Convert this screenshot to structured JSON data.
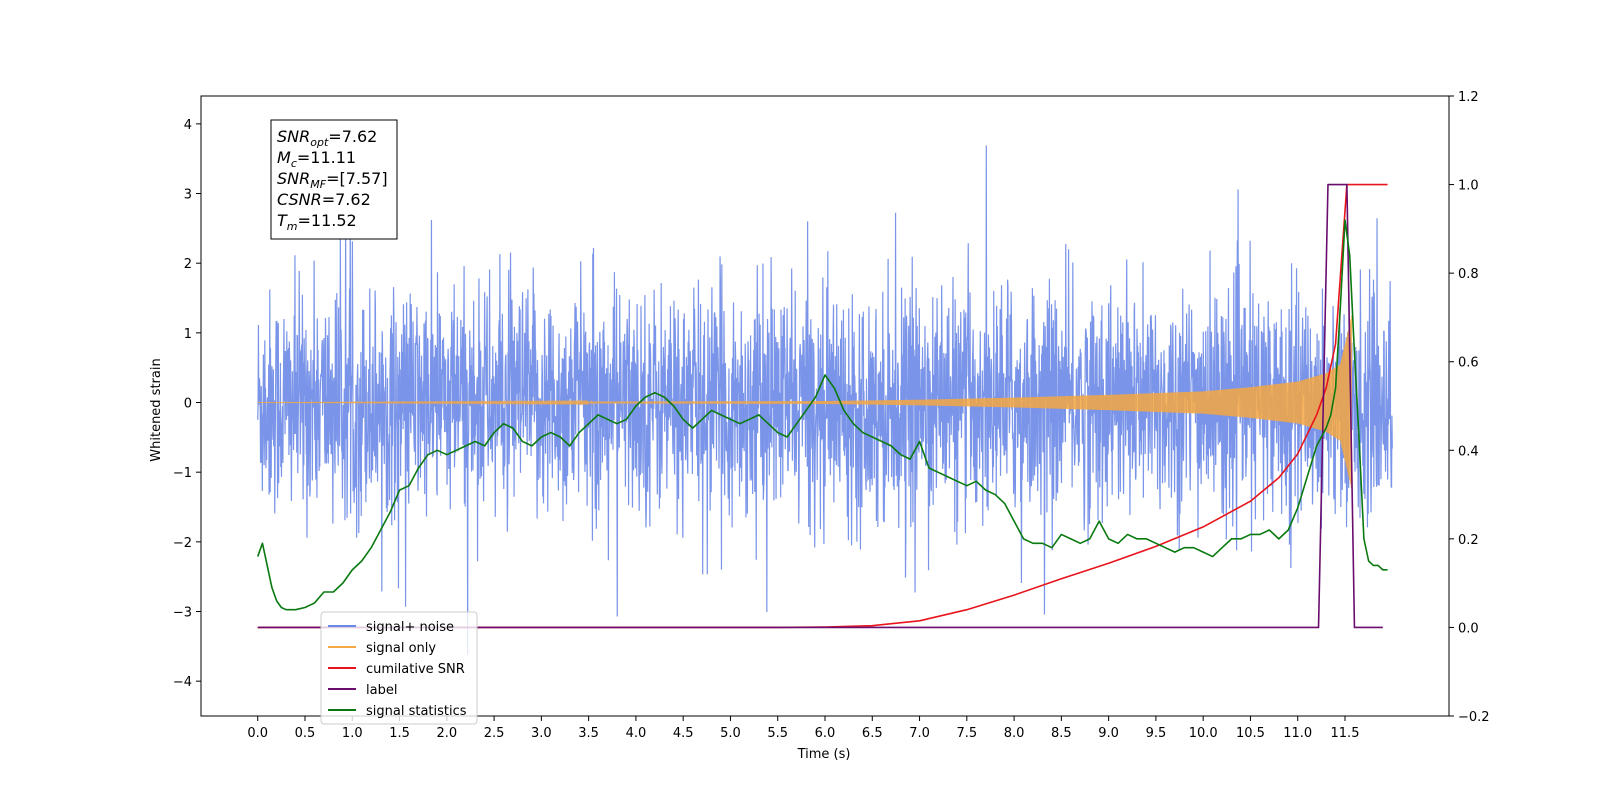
{
  "chart_data": {
    "type": "line",
    "xlabel": "Time (s)",
    "ylabel": "Whitened strain",
    "y2label": "",
    "xlim": [
      -0.6,
      12.6
    ],
    "ylim": [
      -4.5,
      4.4
    ],
    "y2lim": [
      -0.2,
      1.2
    ],
    "xticks": [
      "0.0",
      "0.5",
      "1.0",
      "1.5",
      "2.0",
      "2.5",
      "3.0",
      "3.5",
      "4.0",
      "4.5",
      "5.0",
      "5.5",
      "6.0",
      "6.5",
      "7.0",
      "7.5",
      "8.0",
      "8.5",
      "9.0",
      "9.5",
      "10.0",
      "10.5",
      "11.0",
      "11.5"
    ],
    "yticks": [
      -4,
      -3,
      -2,
      -1,
      0,
      1,
      2,
      3,
      4
    ],
    "y2ticks": [
      "-0.2",
      "0.0",
      "0.2",
      "0.4",
      "0.6",
      "0.8",
      "1.0",
      "1.2"
    ],
    "grid": false,
    "legend_position": "lower-left",
    "annotation": [
      {
        "base": "SNR",
        "sub": "opt",
        "value": "=7.62"
      },
      {
        "base": "M",
        "sub": "c",
        "value": "=11.11"
      },
      {
        "base": "SNR",
        "sub": "MF",
        "value": "=[7.57]"
      },
      {
        "base": "CSNR",
        "sub": "",
        "value": "=7.62"
      },
      {
        "base": "T",
        "sub": "m",
        "value": "=11.52"
      }
    ],
    "series": [
      {
        "name": "signal+ noise",
        "color": "#6a88e6",
        "axis": "left",
        "kind": "noise",
        "x_range": [
          0.0,
          12.0
        ],
        "typical_amplitude": [
          -1.6,
          1.6
        ],
        "peak_range": [
          -4.05,
          4.05
        ]
      },
      {
        "name": "signal only",
        "color": "#f4a742",
        "axis": "left",
        "kind": "chirp",
        "x_range": [
          0.0,
          11.57
        ],
        "envelope": {
          "x": [
            0.0,
            6.0,
            7.0,
            8.0,
            9.0,
            10.0,
            10.5,
            11.0,
            11.3,
            11.45,
            11.52,
            11.57
          ],
          "amp": [
            0.0,
            0.02,
            0.04,
            0.07,
            0.11,
            0.16,
            0.22,
            0.3,
            0.42,
            0.55,
            0.95,
            1.25
          ]
        }
      },
      {
        "name": "cumilative SNR",
        "color": "#e8141c",
        "axis": "right",
        "x": [
          0.0,
          5.5,
          6.0,
          6.5,
          7.0,
          7.5,
          8.0,
          8.5,
          9.0,
          9.5,
          10.0,
          10.5,
          10.8,
          11.0,
          11.2,
          11.3,
          11.4,
          11.52,
          11.6,
          11.95
        ],
        "values": [
          0.0,
          0.0,
          0.001,
          0.004,
          0.015,
          0.04,
          0.073,
          0.11,
          0.145,
          0.183,
          0.227,
          0.285,
          0.338,
          0.392,
          0.48,
          0.54,
          0.64,
          1.0,
          1.0,
          1.0
        ]
      },
      {
        "name": "label",
        "color": "#6a0d6e",
        "axis": "right",
        "x": [
          0.0,
          11.22,
          11.32,
          11.52,
          11.6,
          11.9
        ],
        "values": [
          0.0,
          0.0,
          1.0,
          1.0,
          0.0,
          0.0
        ]
      },
      {
        "name": "signal statistics",
        "color": "#0a7a10",
        "axis": "right",
        "x": [
          0.0,
          0.05,
          0.1,
          0.15,
          0.2,
          0.25,
          0.3,
          0.4,
          0.5,
          0.6,
          0.7,
          0.8,
          0.9,
          1.0,
          1.1,
          1.2,
          1.3,
          1.4,
          1.5,
          1.6,
          1.7,
          1.8,
          1.9,
          2.0,
          2.1,
          2.2,
          2.3,
          2.4,
          2.5,
          2.6,
          2.7,
          2.8,
          2.9,
          3.0,
          3.1,
          3.2,
          3.3,
          3.4,
          3.5,
          3.6,
          3.7,
          3.8,
          3.9,
          4.0,
          4.1,
          4.2,
          4.3,
          4.4,
          4.5,
          4.6,
          4.7,
          4.8,
          4.9,
          5.0,
          5.1,
          5.2,
          5.3,
          5.4,
          5.5,
          5.6,
          5.7,
          5.8,
          5.9,
          6.0,
          6.1,
          6.2,
          6.3,
          6.4,
          6.5,
          6.6,
          6.7,
          6.8,
          6.9,
          7.0,
          7.1,
          7.2,
          7.3,
          7.4,
          7.5,
          7.6,
          7.7,
          7.8,
          7.9,
          8.0,
          8.1,
          8.2,
          8.3,
          8.4,
          8.5,
          8.6,
          8.7,
          8.8,
          8.9,
          9.0,
          9.1,
          9.2,
          9.3,
          9.4,
          9.5,
          9.6,
          9.7,
          9.8,
          9.9,
          10.0,
          10.1,
          10.2,
          10.3,
          10.4,
          10.5,
          10.6,
          10.7,
          10.8,
          10.9,
          11.0,
          11.1,
          11.2,
          11.3,
          11.35,
          11.4,
          11.45,
          11.5,
          11.55,
          11.6,
          11.65,
          11.7,
          11.75,
          11.8,
          11.85,
          11.9,
          11.95
        ],
        "values": [
          0.16,
          0.19,
          0.14,
          0.09,
          0.06,
          0.045,
          0.04,
          0.04,
          0.045,
          0.055,
          0.08,
          0.08,
          0.1,
          0.13,
          0.15,
          0.18,
          0.22,
          0.26,
          0.31,
          0.32,
          0.36,
          0.39,
          0.4,
          0.39,
          0.4,
          0.41,
          0.42,
          0.41,
          0.44,
          0.46,
          0.45,
          0.42,
          0.41,
          0.43,
          0.44,
          0.43,
          0.41,
          0.44,
          0.46,
          0.48,
          0.47,
          0.46,
          0.47,
          0.5,
          0.52,
          0.53,
          0.52,
          0.5,
          0.47,
          0.45,
          0.47,
          0.49,
          0.48,
          0.47,
          0.46,
          0.47,
          0.48,
          0.46,
          0.44,
          0.43,
          0.46,
          0.49,
          0.52,
          0.57,
          0.54,
          0.49,
          0.46,
          0.44,
          0.43,
          0.42,
          0.41,
          0.39,
          0.38,
          0.42,
          0.36,
          0.35,
          0.34,
          0.33,
          0.32,
          0.33,
          0.31,
          0.3,
          0.28,
          0.24,
          0.2,
          0.19,
          0.19,
          0.18,
          0.21,
          0.2,
          0.19,
          0.2,
          0.24,
          0.2,
          0.19,
          0.21,
          0.2,
          0.2,
          0.19,
          0.18,
          0.17,
          0.18,
          0.18,
          0.17,
          0.16,
          0.18,
          0.2,
          0.2,
          0.21,
          0.21,
          0.22,
          0.2,
          0.22,
          0.27,
          0.34,
          0.41,
          0.45,
          0.48,
          0.54,
          0.72,
          0.92,
          0.84,
          0.62,
          0.42,
          0.2,
          0.15,
          0.14,
          0.14,
          0.13,
          0.13
        ]
      }
    ]
  }
}
